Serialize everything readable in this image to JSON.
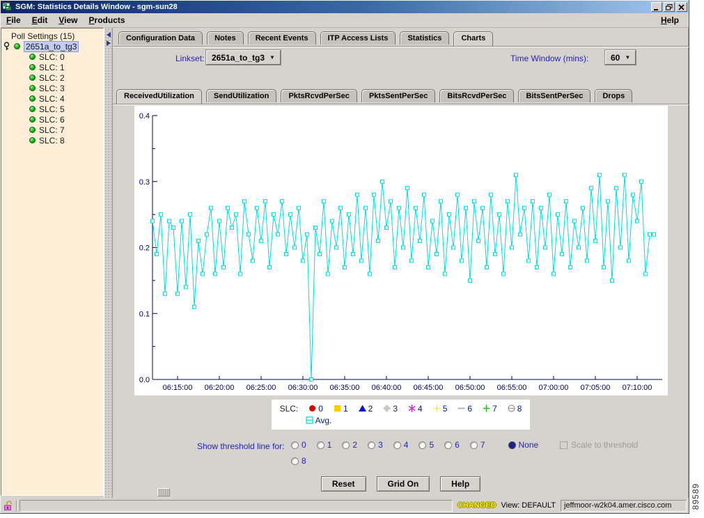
{
  "window": {
    "title": "SGM: Statistics Details Window - sgm-sun28"
  },
  "menu": {
    "items": [
      "File",
      "Edit",
      "View",
      "Products"
    ],
    "help": "Help"
  },
  "tree": {
    "root": "Poll Settings (15)",
    "selected": "2651a_to_tg3",
    "children": [
      "SLC: 0",
      "SLC: 1",
      "SLC: 2",
      "SLC: 3",
      "SLC: 4",
      "SLC: 5",
      "SLC: 6",
      "SLC: 7",
      "SLC: 8"
    ]
  },
  "main_tabs": {
    "items": [
      "Configuration Data",
      "Notes",
      "Recent Events",
      "ITP Access Lists",
      "Statistics",
      "Charts"
    ],
    "active": "Charts"
  },
  "linkset": {
    "label": "Linkset:",
    "value": "2651a_to_tg3"
  },
  "time_window": {
    "label": "Time Window (mins):",
    "value": "60"
  },
  "chart_tabs": {
    "items": [
      "ReceivedUtilization",
      "SendUtilization",
      "PktsRcvdPerSec",
      "PktsSentPerSec",
      "BitsRcvdPerSec",
      "BitsSentPerSec",
      "Drops"
    ],
    "active": "ReceivedUtilization"
  },
  "chart_data": {
    "type": "line",
    "title": "",
    "xlabel": "",
    "ylabel": "",
    "ylim": [
      0,
      0.4
    ],
    "y_ticks": [
      "0.0",
      "0.1",
      "0.2",
      "0.3",
      "0.4"
    ],
    "y_minor_step": 0.05,
    "x_range": [
      "06:12:00",
      "07:13:00"
    ],
    "x_ticks": [
      "06:15:00",
      "06:20:00",
      "06:25:00",
      "06:30:00",
      "06:35:00",
      "06:40:00",
      "06:45:00",
      "06:50:00",
      "06:55:00",
      "07:00:00",
      "07:05:00",
      "07:10:00"
    ],
    "grid": false,
    "axis_color": "#000066",
    "series": [
      {
        "name": "Avg.",
        "color": "#00dde6",
        "marker": "square-open",
        "x_start": "06:12:00",
        "x_step_seconds": 30,
        "values": [
          0.24,
          0.19,
          0.25,
          0.13,
          0.24,
          0.23,
          0.13,
          0.24,
          0.14,
          0.25,
          0.11,
          0.21,
          0.16,
          0.22,
          0.26,
          0.16,
          0.24,
          0.17,
          0.26,
          0.23,
          0.25,
          0.16,
          0.27,
          0.22,
          0.18,
          0.26,
          0.21,
          0.27,
          0.17,
          0.25,
          0.22,
          0.27,
          0.19,
          0.25,
          0.2,
          0.26,
          0.18,
          0.22,
          0.0,
          0.23,
          0.19,
          0.27,
          0.16,
          0.24,
          0.2,
          0.26,
          0.17,
          0.25,
          0.19,
          0.28,
          0.18,
          0.26,
          0.16,
          0.28,
          0.21,
          0.3,
          0.23,
          0.27,
          0.17,
          0.26,
          0.2,
          0.29,
          0.18,
          0.26,
          0.21,
          0.28,
          0.17,
          0.24,
          0.19,
          0.27,
          0.16,
          0.25,
          0.2,
          0.28,
          0.18,
          0.26,
          0.15,
          0.27,
          0.21,
          0.26,
          0.17,
          0.28,
          0.19,
          0.25,
          0.16,
          0.27,
          0.2,
          0.31,
          0.22,
          0.26,
          0.18,
          0.27,
          0.17,
          0.26,
          0.2,
          0.28,
          0.16,
          0.25,
          0.19,
          0.27,
          0.17,
          0.24,
          0.2,
          0.26,
          0.18,
          0.29,
          0.21,
          0.31,
          0.17,
          0.27,
          0.15,
          0.29,
          0.2,
          0.31,
          0.18,
          0.28,
          0.24,
          0.3,
          0.16,
          0.22,
          0.22
        ]
      }
    ]
  },
  "legend": {
    "label": "SLC:",
    "entries": [
      {
        "label": "0",
        "shape": "circle",
        "color": "#dd0000"
      },
      {
        "label": "1",
        "shape": "square",
        "color": "#ffcc00"
      },
      {
        "label": "2",
        "shape": "triangle",
        "color": "#1111bb"
      },
      {
        "label": "3",
        "shape": "diamond",
        "color": "#c9c9c9"
      },
      {
        "label": "4",
        "shape": "asterisk",
        "color": "#ee22ee"
      },
      {
        "label": "5",
        "shape": "plus",
        "color": "#eeee55"
      },
      {
        "label": "6",
        "shape": "dash",
        "color": "#ababab"
      },
      {
        "label": "7",
        "shape": "plus",
        "color": "#22bb22"
      },
      {
        "label": "8",
        "shape": "circle-dash",
        "color": "#999999"
      }
    ],
    "avg": {
      "label": "Avg.",
      "shape": "square-dash",
      "color": "#00dde6"
    }
  },
  "threshold": {
    "label": "Show threshold line for:",
    "options": [
      "0",
      "1",
      "2",
      "3",
      "4",
      "5",
      "6",
      "7"
    ],
    "none_label": "None",
    "selected": "None",
    "row2_option": "8",
    "scale_label": "Scale to threshold"
  },
  "buttons": {
    "reset": "Reset",
    "grid": "Grid On",
    "help": "Help"
  },
  "status": {
    "changed": "CHANGED",
    "view": "View: DEFAULT",
    "host": "jeffmoor-w2k04.amer.cisco.com"
  },
  "figure_number": "89589"
}
